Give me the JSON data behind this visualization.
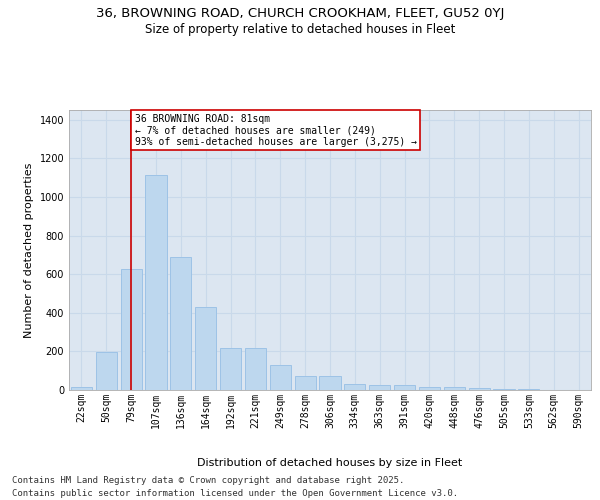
{
  "title_line1": "36, BROWNING ROAD, CHURCH CROOKHAM, FLEET, GU52 0YJ",
  "title_line2": "Size of property relative to detached houses in Fleet",
  "xlabel": "Distribution of detached houses by size in Fleet",
  "ylabel": "Number of detached properties",
  "categories": [
    "22sqm",
    "50sqm",
    "79sqm",
    "107sqm",
    "136sqm",
    "164sqm",
    "192sqm",
    "221sqm",
    "249sqm",
    "278sqm",
    "306sqm",
    "334sqm",
    "363sqm",
    "391sqm",
    "420sqm",
    "448sqm",
    "476sqm",
    "505sqm",
    "533sqm",
    "562sqm",
    "590sqm"
  ],
  "values": [
    15,
    195,
    625,
    1115,
    690,
    430,
    215,
    215,
    130,
    75,
    75,
    30,
    28,
    25,
    18,
    13,
    8,
    5,
    3,
    2,
    1
  ],
  "bar_color": "#BDD7EE",
  "bar_edge_color": "#9DC3E6",
  "grid_color": "#C9D9EA",
  "background_color": "#DCE6F1",
  "red_line_index": 2,
  "annotation_text": "36 BROWNING ROAD: 81sqm\n← 7% of detached houses are smaller (249)\n93% of semi-detached houses are larger (3,275) →",
  "annotation_box_color": "#FFFFFF",
  "annotation_border_color": "#CC0000",
  "footer_line1": "Contains HM Land Registry data © Crown copyright and database right 2025.",
  "footer_line2": "Contains public sector information licensed under the Open Government Licence v3.0.",
  "ylim": [
    0,
    1450
  ],
  "yticks": [
    0,
    200,
    400,
    600,
    800,
    1000,
    1200,
    1400
  ],
  "title_fontsize": 9.5,
  "subtitle_fontsize": 8.5,
  "axis_label_fontsize": 8,
  "tick_fontsize": 7,
  "annotation_fontsize": 7,
  "footer_fontsize": 6.5
}
